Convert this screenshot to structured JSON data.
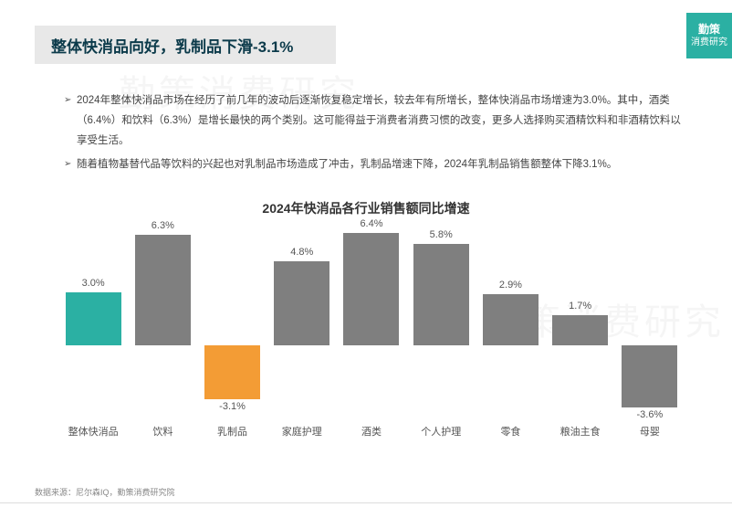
{
  "watermark": "勤策消费研究",
  "header": {
    "title": "整体快消品向好，乳制品下滑-3.1%"
  },
  "logo": {
    "line1": "勤策",
    "line2": "消费研究",
    "bg": "#2bb0a3",
    "fg": "#ffffff"
  },
  "body": {
    "p1": "2024年整体快消品市场在经历了前几年的波动后逐渐恢复稳定增长，较去年有所增长，整体快消品市场增速为3.0%。其中，酒类（6.4%）和饮料（6.3%）是增长最快的两个类别。这可能得益于消费者消费习惯的改变，更多人选择购买酒精饮料和非酒精饮料以享受生活。",
    "p2": "随着植物基替代品等饮料的兴起也对乳制品市场造成了冲击，乳制品增速下降，2024年乳制品销售额整体下降3.1%。"
  },
  "chart": {
    "title": "2024年快消品各行业销售额同比增速",
    "type": "bar",
    "ylim_pos": 7.0,
    "ylim_neg": -4.0,
    "categories": [
      "整体快消品",
      "饮料",
      "乳制品",
      "家庭护理",
      "酒类",
      "个人护理",
      "零食",
      "粮油主食",
      "母婴"
    ],
    "values": [
      3.0,
      6.3,
      -3.1,
      4.8,
      6.4,
      5.8,
      2.9,
      1.7,
      -3.6
    ],
    "value_labels": [
      "3.0%",
      "6.3%",
      "-3.1%",
      "4.8%",
      "6.4%",
      "5.8%",
      "2.9%",
      "1.7%",
      "-3.6%"
    ],
    "bar_colors": [
      "#2bb0a3",
      "#7f7f7f",
      "#f39c35",
      "#7f7f7f",
      "#7f7f7f",
      "#7f7f7f",
      "#7f7f7f",
      "#7f7f7f",
      "#7f7f7f"
    ],
    "label_color": "#555555",
    "label_fontsize": 11
  },
  "source": "数据来源：尼尔森IQ，勤策消费研究院"
}
